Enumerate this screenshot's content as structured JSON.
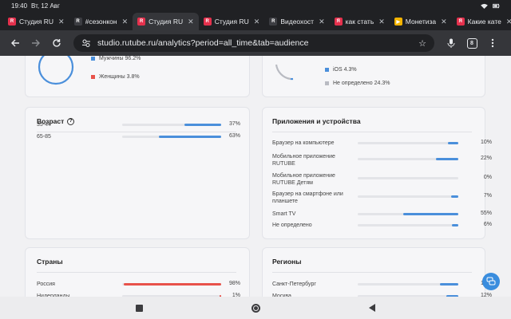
{
  "status": {
    "time": "19:40",
    "date": "Вт, 12 Авг"
  },
  "tabs": [
    {
      "title": "Студия RU",
      "favicon_color": "#e5314d",
      "favicon_letter": "R",
      "active": false
    },
    {
      "title": "#сезонкон",
      "favicon_color": "#3c3d42",
      "favicon_letter": "R",
      "active": false
    },
    {
      "title": "Студия RU",
      "favicon_color": "#e5314d",
      "favicon_letter": "R",
      "active": true
    },
    {
      "title": "Студия RU",
      "favicon_color": "#e5314d",
      "favicon_letter": "R",
      "active": false
    },
    {
      "title": "Видеохост",
      "favicon_color": "#3c3d42",
      "favicon_letter": "R",
      "active": false
    },
    {
      "title": "как стать",
      "favicon_color": "#e5314d",
      "favicon_letter": "Я",
      "active": false
    },
    {
      "title": "Монетиза",
      "favicon_color": "#f5b400",
      "favicon_letter": "▶",
      "active": false
    },
    {
      "title": "Какие кате",
      "favicon_color": "#e5314d",
      "favicon_letter": "Я",
      "active": false
    }
  ],
  "tab_close_glyph": "✕",
  "toolbar": {
    "url": "studio.rutube.ru/analytics?period=all_time&tab=audience",
    "tab_count": "8"
  },
  "gender": {
    "legend": [
      {
        "label": "Мужчины 96.2%",
        "color": "#4a8fdb"
      },
      {
        "label": "Женщины 3.8%",
        "color": "#e8524a"
      }
    ]
  },
  "os": {
    "legend": [
      {
        "label": "iOS 4.3%",
        "color": "#4a8fdb"
      },
      {
        "label": "Не определено 24.3%",
        "color": "#b9bbc2"
      }
    ]
  },
  "age": {
    "title": "Возраст",
    "info_glyph": "?",
    "rows": [
      {
        "label": "35-44",
        "percent": 37,
        "value": "37%"
      },
      {
        "label": "65-85",
        "percent": 63,
        "value": "63%"
      }
    ]
  },
  "apps": {
    "title": "Приложения и устройства",
    "rows": [
      {
        "label": "Браузер на компьютере",
        "percent": 10,
        "value": "10%"
      },
      {
        "label": "Мобильное приложение RUTUBE",
        "percent": 22,
        "value": "22%"
      },
      {
        "label": "Мобильное приложение RUTUBE Детям",
        "percent": 0,
        "value": "0%"
      },
      {
        "label": "Браузер на смартфоне или планшете",
        "percent": 7,
        "value": "7%"
      },
      {
        "label": "Smart TV",
        "percent": 55,
        "value": "55%"
      },
      {
        "label": "Не определено",
        "percent": 6,
        "value": "6%"
      }
    ]
  },
  "countries": {
    "title": "Страны",
    "rows": [
      {
        "label": "Россия",
        "percent": 98,
        "value": "98%"
      },
      {
        "label": "Нидерланды",
        "percent": 1,
        "value": "1%"
      }
    ]
  },
  "regions": {
    "title": "Регионы",
    "rows": [
      {
        "label": "Санкт-Петербург",
        "percent": 18,
        "value": "18%"
      },
      {
        "label": "Москва",
        "percent": 12,
        "value": "12%"
      }
    ]
  },
  "colors": {
    "bar_blue": "#4a8fdb",
    "bar_red": "#e8524a",
    "track": "#e3e4e8"
  }
}
